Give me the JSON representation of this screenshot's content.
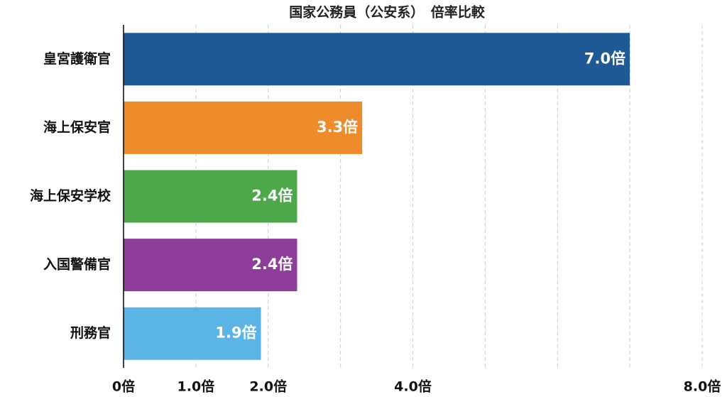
{
  "chart_data": {
    "type": "barh",
    "title": "国家公務員（公安系）　倍率比較",
    "categories": [
      "皇宮護衛官",
      "海上保安官",
      "海上保安学校",
      "入国警備官",
      "刑務官"
    ],
    "values": [
      7.0,
      3.3,
      2.4,
      2.4,
      1.9
    ],
    "value_labels": [
      "7.0倍",
      "3.3倍",
      "2.4倍",
      "2.4倍",
      "1.9倍"
    ],
    "colors": [
      "#1f5a96",
      "#ee8b2b",
      "#4ca94a",
      "#8e3d9a",
      "#5ab4e5"
    ],
    "xlim": [
      0,
      8
    ],
    "xticks": [
      {
        "value": 0,
        "label": "0倍"
      },
      {
        "value": 1,
        "label": "1.0倍"
      },
      {
        "value": 2,
        "label": "2.0倍"
      },
      {
        "value": 3,
        "label": null
      },
      {
        "value": 4,
        "label": "4.0倍"
      },
      {
        "value": 5,
        "label": null
      },
      {
        "value": 6,
        "label": null
      },
      {
        "value": 7,
        "label": null
      },
      {
        "value": 8,
        "label": "8.0倍"
      }
    ],
    "grid": true
  }
}
